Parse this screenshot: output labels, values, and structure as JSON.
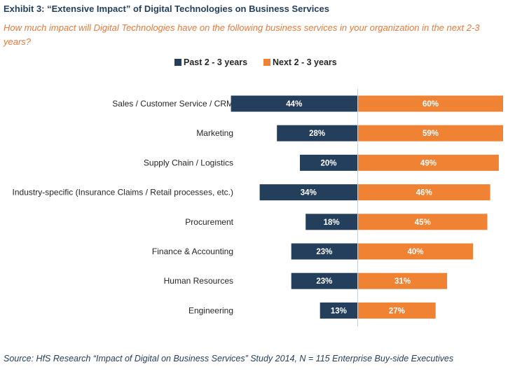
{
  "chart_data": {
    "type": "bar",
    "orientation": "horizontal-diverging",
    "title": "Exhibit 3: “Extensive Impact” of Digital Technologies on Business Services",
    "subtitle": "How much impact will Digital Technologies have on the following business services in your organization in the next 2-3 years?",
    "categories": [
      "Sales / Customer Service / CRM",
      "Marketing",
      "Supply Chain / Logistics",
      "Industry-specific (Insurance Claims / Retail processes, etc.)",
      "Procurement",
      "Finance & Accounting",
      "Human Resources",
      "Engineering"
    ],
    "series": [
      {
        "name": "Past 2 - 3 years",
        "color": "#243f5c",
        "side": "left",
        "values": [
          44,
          28,
          20,
          34,
          18,
          23,
          23,
          13
        ],
        "labels": [
          "44%",
          "28%",
          "20%",
          "34%",
          "18%",
          "23%",
          "23%",
          "13%"
        ]
      },
      {
        "name": "Next 2 - 3 years",
        "color": "#f08234",
        "side": "right",
        "values": [
          60,
          59,
          49,
          46,
          45,
          40,
          31,
          27
        ],
        "labels": [
          "60%",
          "59%",
          "49%",
          "46%",
          "45%",
          "40%",
          "31%",
          "27%"
        ]
      }
    ],
    "unit": "%",
    "legend_position": "top-center",
    "grid": false,
    "source": "Source: HfS Research “Impact of Digital on Business Services” Study 2014, N = 115 Enterprise Buy-side Executives"
  }
}
